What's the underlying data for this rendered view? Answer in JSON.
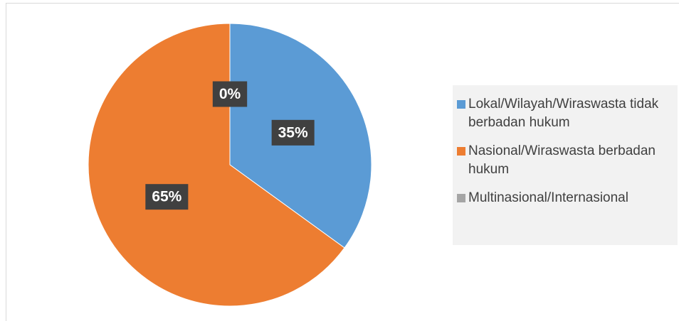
{
  "chart_data": {
    "type": "pie",
    "categories": [
      "Lokal/Wilayah/Wiraswasta tidak berbadan hukum",
      "Nasional/Wiraswasta berbadan hukum",
      "Multinasional/Internasional"
    ],
    "values": [
      35,
      65,
      0
    ],
    "value_labels": [
      "35%",
      "65%",
      "0%"
    ],
    "colors": [
      "#5b9bd5",
      "#ed7d31",
      "#a5a5a5"
    ],
    "legend": "right"
  }
}
